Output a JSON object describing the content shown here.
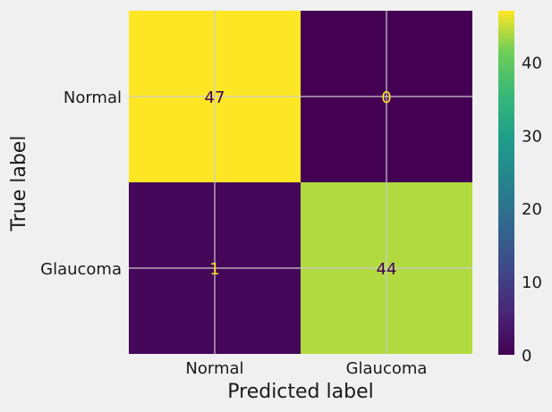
{
  "chart_data": {
    "type": "heatmap",
    "title": "",
    "xlabel": "Predicted label",
    "ylabel": "True label",
    "x_categories": [
      "Normal",
      "Glaucoma"
    ],
    "y_categories": [
      "Normal",
      "Glaucoma"
    ],
    "values": [
      [
        47,
        0
      ],
      [
        1,
        44
      ]
    ],
    "colormap": "viridis",
    "colorbar": {
      "range": [
        0,
        47
      ],
      "ticks": [
        0,
        10,
        20,
        30,
        40
      ]
    },
    "grid": true,
    "colors": {
      "background": "#f0f0f0",
      "cell_max": "#fde725",
      "cell_min": "#440154",
      "text_on_dark": "#fde725",
      "text_on_light": "#440154"
    }
  }
}
